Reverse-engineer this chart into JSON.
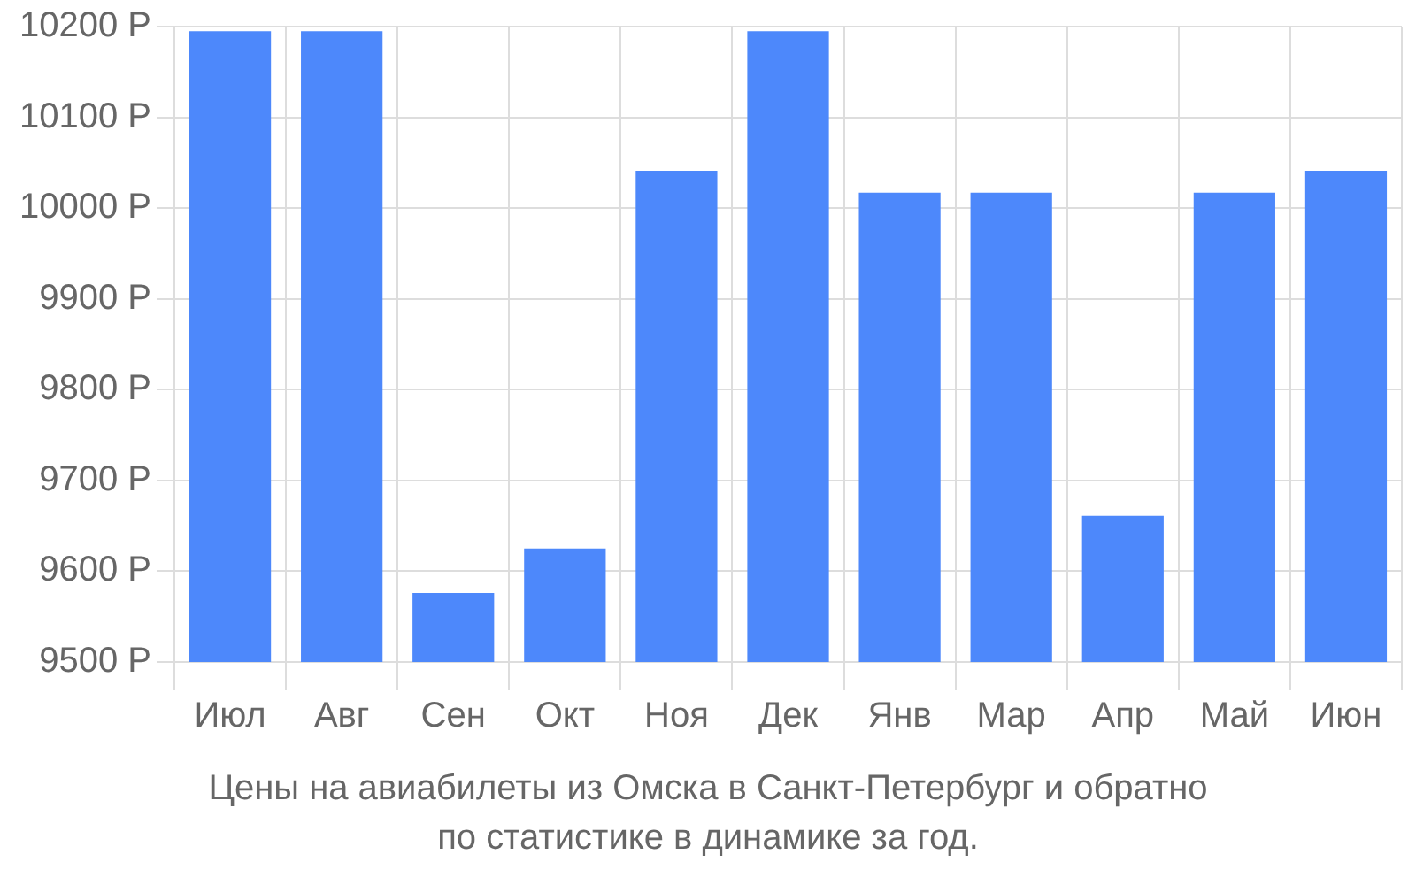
{
  "chart_data": {
    "type": "bar",
    "title": "Цены на авиабилеты из Омска в Санкт-Петербург и обратно",
    "subtitle": "по статистике в динамике за год.",
    "categories": [
      "Июл",
      "Авг",
      "Сен",
      "Окт",
      "Ноя",
      "Дек",
      "Янв",
      "Мар",
      "Апр",
      "Май",
      "Июн"
    ],
    "values": [
      10195,
      10195,
      9576,
      9625,
      10041,
      10195,
      10017,
      10017,
      9661,
      10017,
      10041
    ],
    "color": "#4d88fb",
    "ylim": [
      9500,
      10200
    ],
    "yticks": [
      {
        "value": 9500,
        "label": "9500 Р"
      },
      {
        "value": 9600,
        "label": "9600 Р"
      },
      {
        "value": 9700,
        "label": "9700 Р"
      },
      {
        "value": 9800,
        "label": "9800 Р"
      },
      {
        "value": 9900,
        "label": "9900 Р"
      },
      {
        "value": 10000,
        "label": "10000 Р"
      },
      {
        "value": 10100,
        "label": "10100 Р"
      },
      {
        "value": 10200,
        "label": "10200 Р"
      }
    ],
    "grid": true
  }
}
